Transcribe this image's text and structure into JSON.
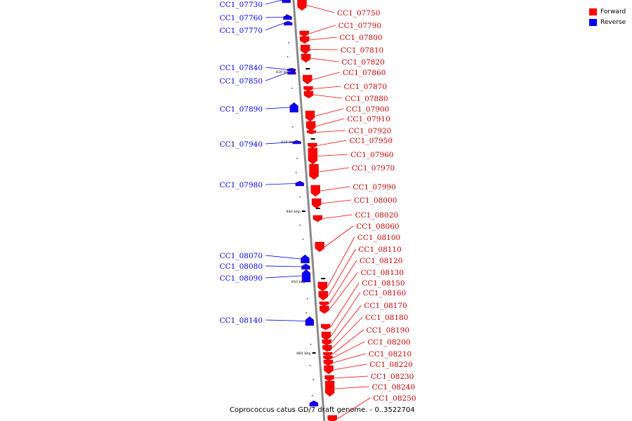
{
  "legend": {
    "items": [
      {
        "label": "Forward",
        "color": "#ff0000"
      },
      {
        "label": "Reverse",
        "color": "#0000ff"
      }
    ]
  },
  "caption": "Coprococcus catus GD/7 draft genome. - 0..3522704",
  "ticks": [
    "820 kbp",
    "830 kbp",
    "840 kbp",
    "850 kbp",
    "860 kbp"
  ],
  "colors": {
    "forward": "#ff0000",
    "reverse": "#0000ff",
    "backbone": "#8a8a8a"
  },
  "reverse_genes": [
    "CC1_07730",
    "CC1_07760",
    "CC1_07770",
    "CC1_07840",
    "CC1_07850",
    "CC1_07890",
    "CC1_07940",
    "CC1_07980",
    "CC1_08070",
    "CC1_08080",
    "CC1_08090",
    "CC1_08140"
  ],
  "forward_genes": [
    "CC1_07750",
    "CC1_07790",
    "CC1_07800",
    "CC1_07810",
    "CC1_07820",
    "CC1_07860",
    "CC1_07870",
    "CC1_07880",
    "CC1_07900",
    "CC1_07910",
    "CC1_07920",
    "CC1_07950",
    "CC1_07960",
    "CC1_07970",
    "CC1_07990",
    "CC1_08000",
    "CC1_08020",
    "CC1_08060",
    "CC1_08100",
    "CC1_08110",
    "CC1_08120",
    "CC1_08130",
    "CC1_08150",
    "CC1_08160",
    "CC1_08170",
    "CC1_08180",
    "CC1_08190",
    "CC1_08200",
    "CC1_08210",
    "CC1_08220",
    "CC1_08230",
    "CC1_08240",
    "CC1_08250"
  ]
}
